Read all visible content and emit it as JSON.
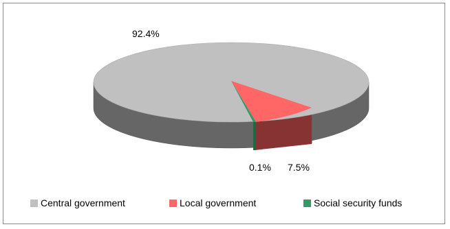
{
  "chart_data": {
    "type": "pie",
    "style": "3d",
    "title": "",
    "slices": [
      {
        "label": "Central government",
        "value": 92.4,
        "display": "92.4%",
        "color": "#c0c0c0"
      },
      {
        "label": "Local government",
        "value": 7.5,
        "display": "7.5%",
        "color": "#ff6666"
      },
      {
        "label": "Social security funds",
        "value": 0.1,
        "display": "0.1%",
        "color": "#339966"
      }
    ],
    "legend_position": "bottom"
  }
}
